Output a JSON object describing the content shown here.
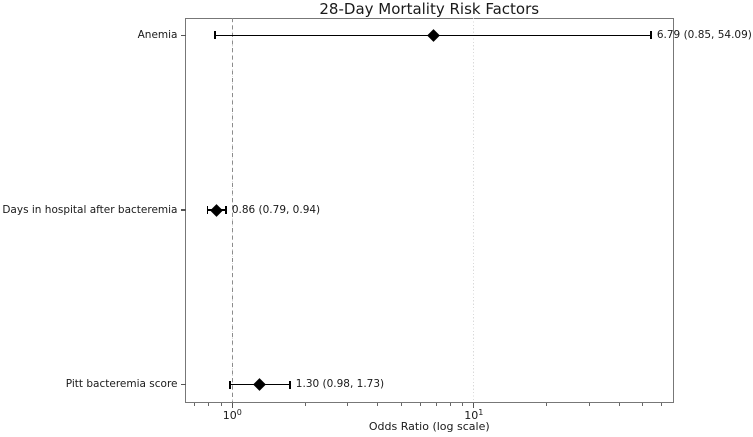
{
  "chart_data": {
    "type": "forest",
    "title": "28-Day Mortality Risk Factors",
    "xlabel": "Odds Ratio (log scale)",
    "xscale": "log",
    "xlim": [
      0.64,
      66.8
    ],
    "grid": {
      "axis": "x",
      "which": "major",
      "style": "dotted",
      "color": "#d9d9d9"
    },
    "reference_line": {
      "value": 1.0,
      "style": "dashed",
      "color": "#8c8c8c"
    },
    "x_major_ticks": [
      {
        "value": 1,
        "base": "10",
        "exp": "0"
      },
      {
        "value": 10,
        "base": "10",
        "exp": "1"
      }
    ],
    "x_minor_ticks": [
      0.7,
      0.8,
      0.9,
      2,
      3,
      4,
      5,
      6,
      7,
      8,
      9,
      20,
      30,
      40,
      50,
      60
    ],
    "rows": [
      {
        "label": "Anemia",
        "or": 6.79,
        "ci_low": 0.85,
        "ci_high": 54.09,
        "annotation": "6.79 (0.85, 54.09)"
      },
      {
        "label": "Days in hospital after bacteremia",
        "or": 0.86,
        "ci_low": 0.79,
        "ci_high": 0.94,
        "annotation": "0.86 (0.79, 0.94)"
      },
      {
        "label": "Pitt bacteremia score",
        "or": 1.3,
        "ci_low": 0.98,
        "ci_high": 1.73,
        "annotation": "1.30 (0.98, 1.73)"
      }
    ],
    "colors": {
      "marker": "#000000",
      "error_bar": "#000000",
      "spine": "#777777",
      "tick": "#555555",
      "text": "#1a1a1a",
      "background": "#ffffff"
    }
  }
}
